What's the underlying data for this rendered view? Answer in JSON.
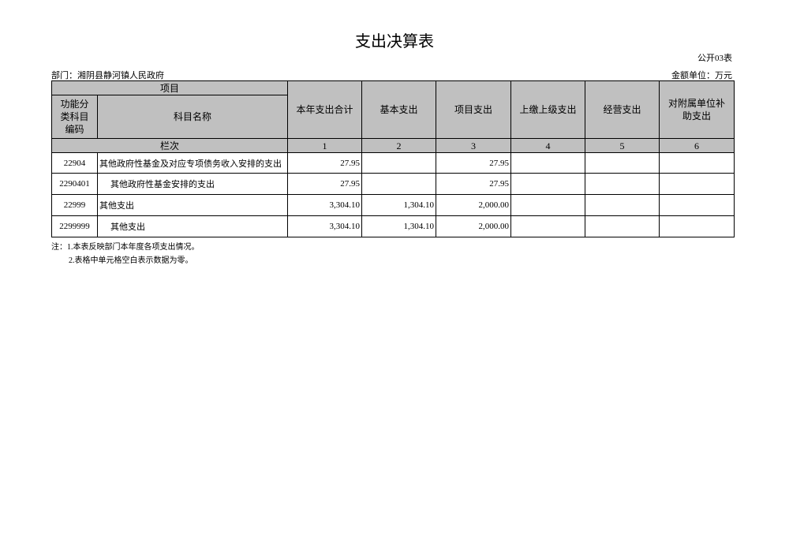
{
  "header": {
    "title": "支出决算表",
    "form_no": "公开03表",
    "department": "部门：湘阴县静河镇人民政府",
    "unit": "金额单位：万元"
  },
  "table": {
    "group_header": "项目",
    "columns": [
      "功能分类科目编码",
      "科目名称",
      "本年支出合计",
      "基本支出",
      "项目支出",
      "上缴上级支出",
      "经营支出",
      "对附属单位补助支出"
    ],
    "index_label": "栏次",
    "column_numbers": [
      "1",
      "2",
      "3",
      "4",
      "5",
      "6"
    ],
    "rows": [
      {
        "code": "22904",
        "name": "其他政府性基金及对应专项债务收入安排的支出",
        "total": "27.95",
        "project": "27.95"
      },
      {
        "code": "2290401",
        "name": "其他政府性基金安排的支出",
        "total": "27.95",
        "project": "27.95"
      },
      {
        "code": "22999",
        "name": "其他支出",
        "total": "3,304.10",
        "basic": "1,304.10",
        "project": "2,000.00"
      },
      {
        "code": "2299999",
        "name": "其他支出",
        "total": "3,304.10",
        "basic": "1,304.10",
        "project": "2,000.00"
      }
    ]
  },
  "notes": [
    "注：1.本表反映部门本年度各项支出情况。",
    "2.表格中单元格空白表示数据为零。"
  ]
}
